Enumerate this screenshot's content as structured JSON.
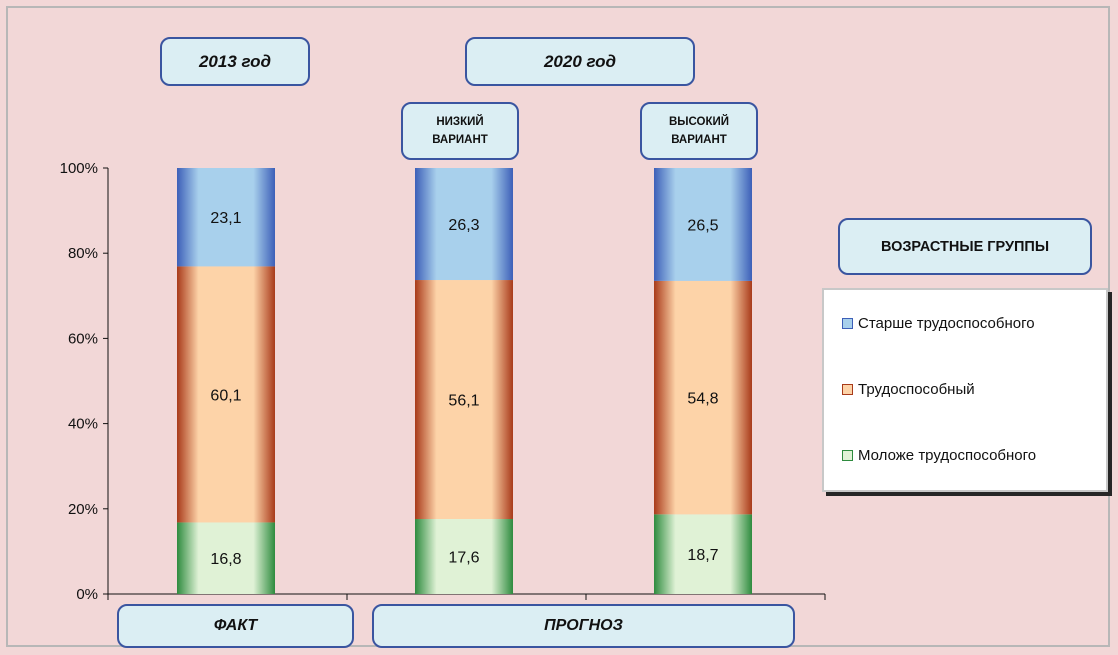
{
  "chart_data": {
    "type": "bar",
    "stacked": true,
    "normalized": true,
    "categories": [
      "2013 год",
      "низкий вариант",
      "высокий вариант"
    ],
    "series": [
      {
        "name": "Моложе трудоспособного",
        "values": [
          16.8,
          17.6,
          18.7
        ],
        "color": "#2e8b3e",
        "light": "#e0f2d6"
      },
      {
        "name": "Трудоспособный",
        "values": [
          60.1,
          56.1,
          54.8
        ],
        "color": "#a83a1a",
        "light": "#fdd3a8"
      },
      {
        "name": "Старше трудоспособного",
        "values": [
          23.1,
          26.3,
          26.5
        ],
        "color": "#3d5fb8",
        "light": "#a8d0ec"
      }
    ],
    "ylim": [
      0,
      100
    ],
    "yticks": [
      "0%",
      "20%",
      "40%",
      "60%",
      "80%",
      "100%"
    ],
    "grid": false,
    "legend_position": "right"
  },
  "labels": {
    "year_2013": "2013 год",
    "year_2020": "2020 год",
    "low_variant": "НИЗКИЙ ВАРИАНТ",
    "high_variant": "ВЫСОКИЙ ВАРИАНТ",
    "fact": "ФАКТ",
    "forecast": "ПРОГНОЗ",
    "legend_title": "ВОЗРАСТНЫЕ ГРУППЫ"
  },
  "legend": {
    "items": [
      "Старше трудоспособного",
      "Трудоспособный",
      "Моложе трудоспособного"
    ]
  }
}
